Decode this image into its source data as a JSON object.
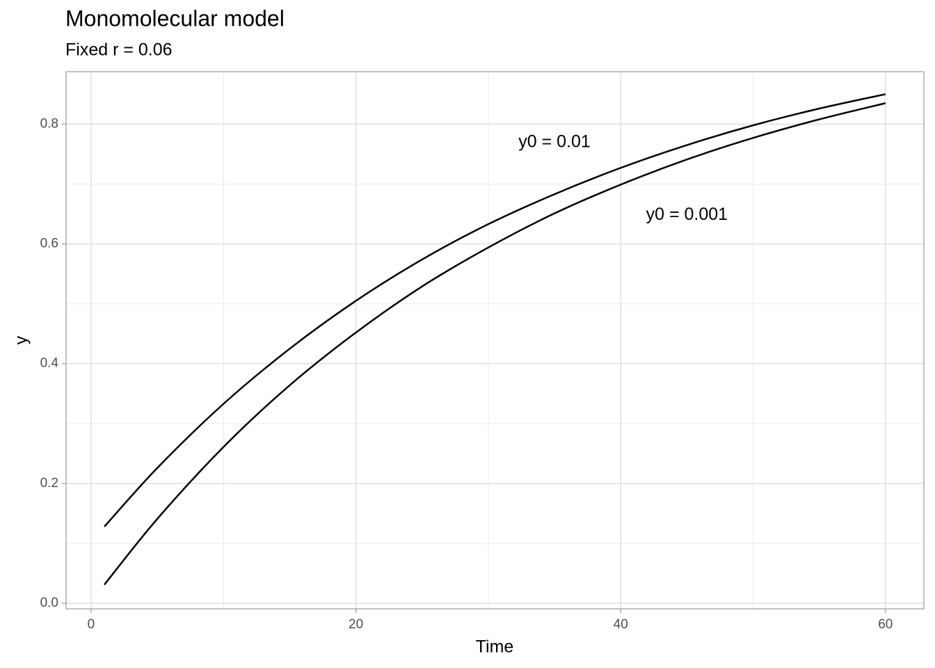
{
  "chart_data": {
    "type": "line",
    "title": "Monomolecular model",
    "subtitle": "Fixed r = 0.06",
    "x_label": "Time",
    "y_label": "y",
    "x": [
      1,
      5,
      10,
      15,
      20,
      25,
      30,
      35,
      40,
      45,
      50,
      55,
      60
    ],
    "series": [
      {
        "name": "y0 = 0.01",
        "color": "#000000",
        "values": [
          0.128,
          0.226,
          0.333,
          0.425,
          0.505,
          0.574,
          0.633,
          0.683,
          0.727,
          0.765,
          0.798,
          0.826,
          0.85
        ]
      },
      {
        "name": "y0 = 0.001",
        "color": "#000000",
        "values": [
          0.031,
          0.141,
          0.261,
          0.364,
          0.452,
          0.529,
          0.594,
          0.651,
          0.699,
          0.741,
          0.777,
          0.808,
          0.835
        ]
      }
    ],
    "annotations": [
      {
        "text": "y0 = 0.01",
        "x": 35,
        "y": 0.769
      },
      {
        "text": "y0 = 0.001",
        "x": 45,
        "y": 0.648
      }
    ],
    "xlim": [
      -1.89,
      62.9
    ],
    "ylim": [
      -0.0093,
      0.8876
    ],
    "xticks": [
      0,
      20,
      40,
      60
    ],
    "yticks": [
      {
        "value": 0,
        "label": "0.0"
      },
      0.2,
      0.4,
      0.6,
      0.8
    ],
    "xminor": [
      10,
      30,
      50
    ],
    "yminor": [
      0.1,
      0.3,
      0.5,
      0.7
    ],
    "grid": true
  }
}
